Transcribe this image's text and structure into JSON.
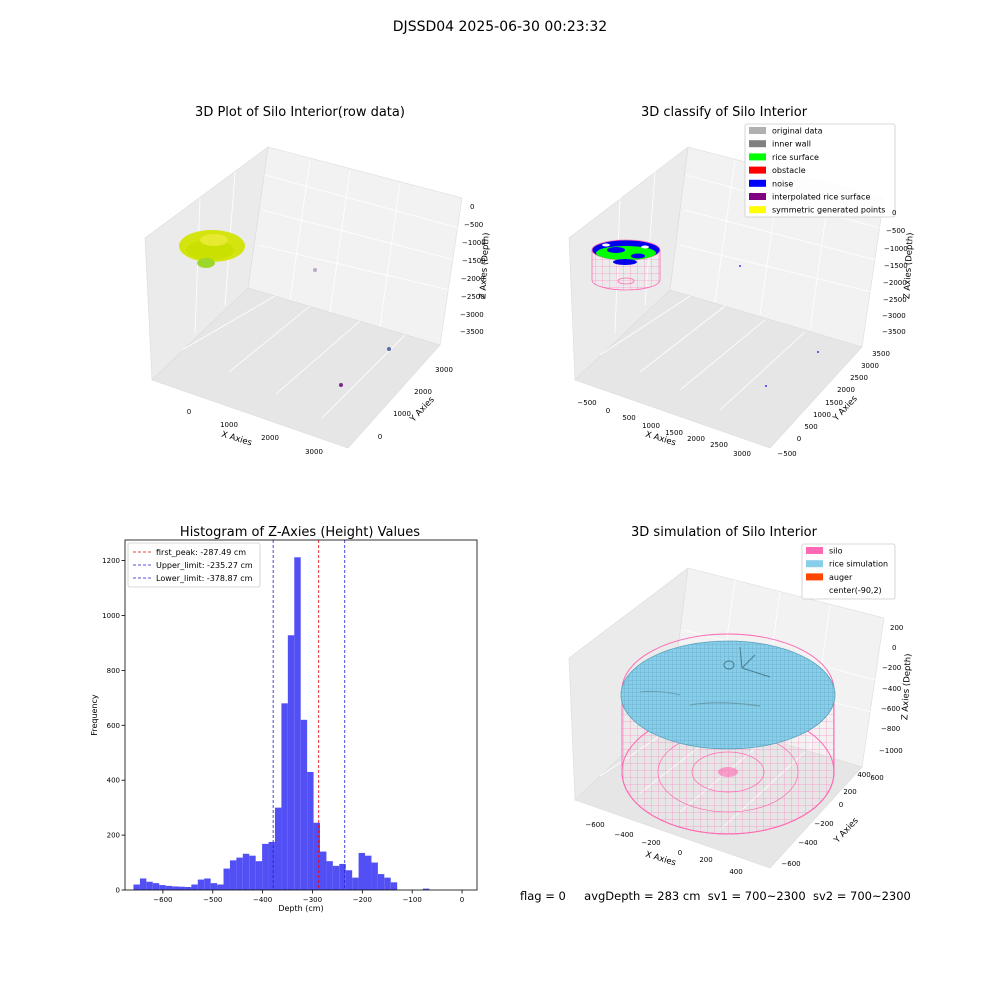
{
  "suptitle": "DJSSD04 2025-06-30 00:23:32",
  "footer": {
    "flag": "flag = 0",
    "avg_depth": "avgDepth = 283 cm",
    "sv1": "sv1 = 700~2300",
    "sv2": "sv2 = 700~2300"
  },
  "colors": {
    "hist_bar": "#4f4cf5",
    "peak_line": "#e8000b",
    "limit_line": "#1a1adf",
    "silo": "#ff69b4",
    "rice_sim": "#87ceeb",
    "auger": "#ff4500",
    "rice_surface": "#00ff00",
    "noise": "#0000ff",
    "raw_surface": "#d4e40f"
  },
  "chart_data": [
    {
      "type": "scatter",
      "id": "raw",
      "title": "3D Plot of Silo Interior(row data)",
      "xlabel": "X Axies",
      "ylabel": "Y Axies",
      "zlabel": "Z Axies (Depth)",
      "x_ticks": [
        "0",
        "1000",
        "2000",
        "3000"
      ],
      "y_ticks": [
        "0",
        "1000",
        "2000",
        "3000"
      ],
      "z_ticks": [
        "0",
        "−500",
        "−1000",
        "−1500",
        "−2000",
        "−2500",
        "−3000",
        "−3500"
      ]
    },
    {
      "type": "scatter",
      "id": "classify",
      "title": "3D classify of Silo Interior",
      "xlabel": "X Axies",
      "ylabel": "Y Axies",
      "zlabel": "Z Axies (Depth)",
      "x_ticks": [
        "−500",
        "0",
        "500",
        "1000",
        "1500",
        "2000",
        "2500",
        "3000"
      ],
      "y_ticks": [
        "−500",
        "0",
        "500",
        "1000",
        "1500",
        "2000",
        "2500",
        "3000",
        "3500"
      ],
      "z_ticks": [
        "0",
        "−500",
        "−1000",
        "−1500",
        "−2000",
        "−2500",
        "−3000",
        "−3500"
      ],
      "legend": [
        {
          "label": "original data",
          "color": "#b0b0b0"
        },
        {
          "label": "inner wall",
          "color": "#808080"
        },
        {
          "label": "rice surface",
          "color": "#00ff00"
        },
        {
          "label": "obstacle",
          "color": "#ff0000"
        },
        {
          "label": "noise",
          "color": "#0000ff"
        },
        {
          "label": "interpolated rice surface",
          "color": "#800080"
        },
        {
          "label": "symmetric generated points",
          "color": "#ffff00"
        }
      ]
    },
    {
      "type": "bar",
      "id": "histogram",
      "title": "Histogram of Z-Axies (Height) Values",
      "xlabel": "Depth (cm)",
      "ylabel": "Frequency",
      "xlim": [
        -676,
        30
      ],
      "ylim": [
        0,
        1275
      ],
      "x_ticks": [
        {
          "v": -600,
          "label": "−600"
        },
        {
          "v": -500,
          "label": "−500"
        },
        {
          "v": -400,
          "label": "−400"
        },
        {
          "v": -300,
          "label": "−300"
        },
        {
          "v": -200,
          "label": "−200"
        },
        {
          "v": -100,
          "label": "−100"
        },
        {
          "v": 0,
          "label": "0"
        }
      ],
      "y_ticks": [
        0,
        200,
        400,
        600,
        800,
        1000,
        1200
      ],
      "bin_start": -659,
      "bin_width": 12.9,
      "counts": [
        20,
        42,
        30,
        25,
        18,
        15,
        13,
        12,
        11,
        20,
        38,
        42,
        25,
        20,
        78,
        108,
        118,
        132,
        125,
        105,
        168,
        175,
        300,
        680,
        928,
        1212,
        620,
        430,
        245,
        140,
        105,
        88,
        95,
        72,
        45,
        135,
        125,
        100,
        58,
        45,
        28,
        0,
        0,
        0,
        0,
        5
      ],
      "vlines": [
        {
          "x": -287.49,
          "label": "first_peak: -287.49 cm",
          "style": "peak"
        },
        {
          "x": -235.27,
          "label": "Upper_limit: -235.27 cm",
          "style": "limit"
        },
        {
          "x": -378.87,
          "label": "Lower_limit: -378.87 cm",
          "style": "limit"
        }
      ]
    },
    {
      "type": "scatter",
      "id": "simulation",
      "title": "3D simulation of Silo Interior",
      "xlabel": "X Axies",
      "ylabel": "Y Axies",
      "zlabel": "Z Axies (Depth)",
      "x_ticks": [
        "−600",
        "−400",
        "−200",
        "0",
        "200",
        "400"
      ],
      "y_ticks": [
        "−600",
        "−400",
        "−200",
        "0",
        "200",
        "400",
        "600"
      ],
      "z_ticks": [
        "200",
        "0",
        "−200",
        "−400",
        "−600",
        "−800",
        "−1000"
      ],
      "legend": [
        {
          "label": "silo",
          "color": "#ff69b4"
        },
        {
          "label": "rice simulation",
          "color": "#87ceeb"
        },
        {
          "label": "auger",
          "color": "#ff4500"
        },
        {
          "label": "center(-90,2)",
          "color": "none"
        }
      ]
    }
  ]
}
